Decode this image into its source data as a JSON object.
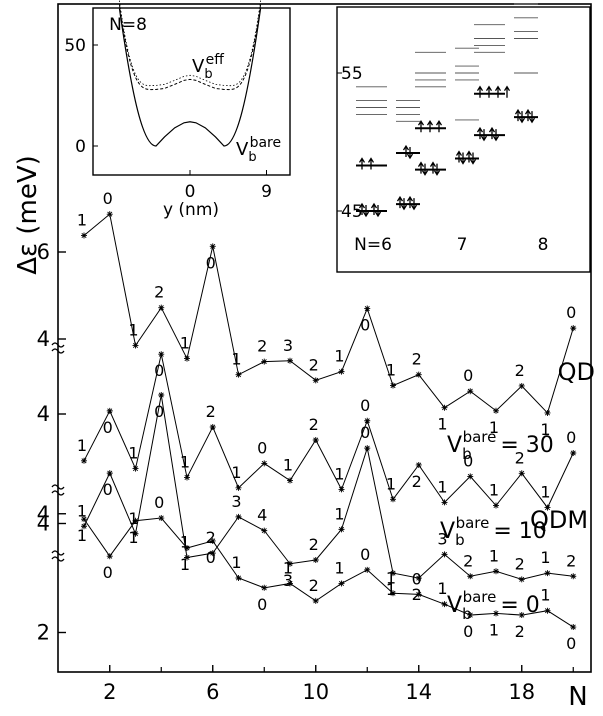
{
  "chart_data": {
    "type": "line",
    "xlabel": "N",
    "ylabel": "Δε (meV)",
    "x_ticks": [
      2,
      6,
      10,
      14,
      18
    ],
    "y_ticks": [
      "2",
      "4",
      "4",
      "4",
      "4",
      "6"
    ],
    "x": [
      1,
      2,
      3,
      4,
      5,
      6,
      7,
      8,
      9,
      10,
      11,
      12,
      13,
      14,
      15,
      16,
      17,
      18,
      19,
      20
    ],
    "series": [
      {
        "name": "QD",
        "label_main": "QD",
        "y": [
          6.38,
          6.87,
          3.85,
          4.72,
          3.55,
          6.13,
          3.18,
          3.48,
          3.5,
          3.05,
          3.25,
          4.7,
          2.93,
          3.18,
          2.42,
          2.8,
          2.35,
          2.92,
          2.3,
          4.25
        ],
        "point_labels": [
          "1",
          "0",
          "1",
          "2",
          "1",
          "0",
          "1",
          "2",
          "3",
          "2",
          "1",
          "0",
          "1",
          "2",
          "1",
          "0",
          "1",
          "2",
          "1",
          "0"
        ]
      },
      {
        "name": "V_b^bare = 30",
        "label_prefix": "V",
        "label_sub": "b",
        "label_sup": "bare",
        "label_value": "= 30",
        "y": [
          3.1,
          4.06,
          2.95,
          5.15,
          2.78,
          3.75,
          2.58,
          3.05,
          2.72,
          3.5,
          2.55,
          3.87,
          2.36,
          3.02,
          2.3,
          2.8,
          2.24,
          2.86,
          2.2,
          3.25
        ],
        "point_labels": [
          "1",
          "0",
          "1",
          "0",
          "1",
          "2",
          "1",
          "0",
          "1",
          "2",
          "1",
          "0",
          "1",
          "2",
          "1",
          "0",
          "1",
          "2",
          "1",
          "0"
        ]
      },
      {
        "name": "V_b^bare = 10",
        "label_prefix": "V",
        "label_sub": "b",
        "label_sup": "bare",
        "label_value": "= 10",
        "label_extra": "QDM",
        "y": [
          3.1,
          3.95,
          2.98,
          5.2,
          2.6,
          2.67,
          3.25,
          3.03,
          2.5,
          2.56,
          3.05,
          4.35,
          2.35,
          2.27,
          2.65,
          2.3,
          2.38,
          2.25,
          2.35,
          2.3
        ],
        "point_labels": [
          "1",
          "0",
          "1",
          "0",
          "1",
          "2",
          "3",
          "4",
          "3",
          "2",
          "1",
          "0",
          "1",
          "2",
          "3",
          "2",
          "1",
          "2",
          "1",
          "2"
        ]
      },
      {
        "name": "V_b^bare = 0",
        "label_prefix": "V",
        "label_sub": "b",
        "label_sup": "bare",
        "label_value": "= 0",
        "y": [
          4.08,
          3.4,
          4.05,
          4.1,
          3.55,
          3.68,
          3.0,
          2.82,
          2.9,
          2.58,
          2.9,
          3.15,
          2.72,
          2.7,
          2.52,
          2.32,
          2.35,
          2.32,
          2.4,
          2.1
        ],
        "point_labels": [
          "1",
          "0",
          "1",
          "0",
          "1",
          "0",
          "1",
          "0",
          "1",
          "2",
          "1",
          "0",
          "1",
          "0",
          "1",
          "0",
          "1",
          "2",
          "1",
          "0"
        ]
      }
    ],
    "inset_left": {
      "title": "N=8",
      "xlabel": "y (nm)",
      "x_ticks": [
        "0",
        "9"
      ],
      "y_ticks": [
        "0",
        "50"
      ],
      "xlim": [
        -9,
        9
      ],
      "ylim": [
        -5,
        70
      ],
      "label_eff_main": "V",
      "label_eff_sub": "b",
      "label_eff_sup": "eff",
      "label_bare_main": "V",
      "label_bare_sub": "b",
      "label_bare_sup": "bare",
      "curve_bare": {
        "y": [
          0.0,
          4.5,
          9.0,
          11.5,
          12.0,
          11.5,
          9.0,
          4.5,
          0.0
        ],
        "x": [
          -4.0,
          -3.0,
          -1.8,
          -0.7,
          0.0,
          0.7,
          1.8,
          3.0,
          4.0
        ]
      },
      "curve_eff": {
        "x": [
          -4.0,
          -3.0,
          -1.8,
          -0.7,
          0.0,
          0.7,
          1.8,
          3.0,
          4.0
        ],
        "y": [
          28.0,
          28.5,
          30.5,
          32.5,
          33.0,
          32.5,
          30.5,
          28.5,
          28.0
        ]
      }
    },
    "inset_right": {
      "y_ticks": [
        "45",
        "55"
      ],
      "ylim": [
        42,
        61
      ],
      "x_labels": [
        "N=6",
        "7",
        "8"
      ],
      "groups": [
        {
          "N": 6,
          "qd_levels": [
            45.0,
            48.3,
            52.0,
            52.5,
            53.0,
            54.0
          ],
          "qd_occupied": [
            45.0,
            48.3
          ],
          "qd_arrows": [
            "updown",
            "up",
            "up"
          ],
          "qdm_levels": [
            45.5,
            49.2,
            51.5,
            52.0,
            52.5,
            53.0
          ],
          "qdm_occupied": [
            45.5,
            49.2
          ],
          "qdm_arrows": [
            "updown",
            "updown"
          ]
        },
        {
          "N": 7,
          "qd_levels": [
            48.0,
            51.0,
            54.0,
            54.5,
            55.0,
            56.5
          ],
          "qd_occupied": [
            48.0,
            51.0
          ],
          "qd_arrows": [
            "updown",
            "up",
            "up",
            "up"
          ],
          "qdm_levels": [
            48.8,
            51.6,
            54.5,
            55.0,
            55.5,
            56.8
          ],
          "qdm_occupied": [
            48.8
          ],
          "qdm_arrows": [
            "updown"
          ]
        },
        {
          "N": 8,
          "qd_levels": [
            50.5,
            53.5,
            56.5,
            57.0,
            57.5,
            58.5
          ],
          "qd_occupied": [
            50.5,
            53.5
          ],
          "qd_arrows": [
            "updown",
            "up",
            "up",
            "up",
            "up"
          ],
          "qdm_levels": [
            51.8,
            55.0,
            57.5,
            58.0,
            59.0,
            60.0
          ],
          "qdm_occupied": [
            51.8
          ],
          "qdm_arrows": [
            "updown"
          ]
        }
      ]
    }
  }
}
